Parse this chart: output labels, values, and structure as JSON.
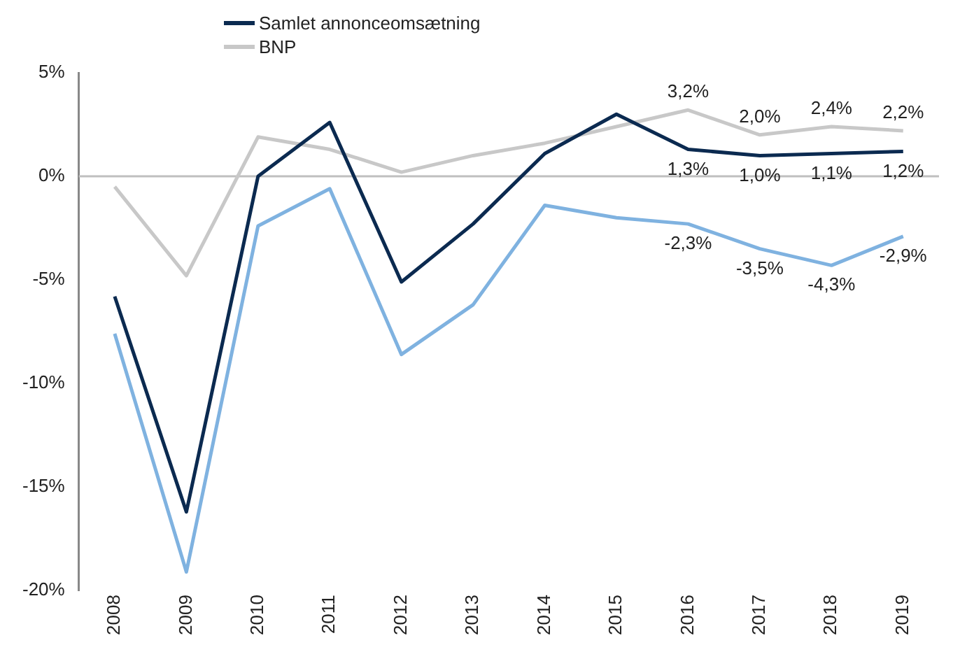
{
  "chart_data": {
    "type": "line",
    "categories": [
      "2008",
      "2009",
      "2010",
      "2011",
      "2012",
      "2013",
      "2014",
      "2015",
      "2016",
      "2017",
      "2018",
      "2019"
    ],
    "series": [
      {
        "name": "Samlet annonceomsætning",
        "color": "#0b2a50",
        "values": [
          -5.8,
          -16.2,
          0,
          2.6,
          -5.1,
          -2.3,
          1.1,
          3.0,
          1.3,
          1.0,
          1.1,
          1.2
        ],
        "value_labels": [
          null,
          null,
          null,
          null,
          null,
          null,
          null,
          null,
          "1,3%",
          "1,0%",
          "1,1%",
          "1,2%"
        ]
      },
      {
        "color": "#7fb2e0",
        "values": [
          -7.6,
          -19.1,
          -2.4,
          -0.6,
          -8.6,
          -6.2,
          -1.4,
          -2.0,
          -2.3,
          -3.5,
          -4.3,
          -2.9
        ],
        "value_labels": [
          null,
          null,
          null,
          null,
          null,
          null,
          null,
          null,
          "-2,3%",
          "-3,5%",
          "-4,3%",
          "-2,9%"
        ]
      },
      {
        "name": "BNP",
        "color": "#c8c8c8",
        "values": [
          -0.5,
          -4.8,
          1.9,
          1.3,
          0.2,
          1.0,
          1.6,
          2.4,
          3.2,
          2.0,
          2.4,
          2.2
        ],
        "value_labels": [
          null,
          null,
          null,
          null,
          null,
          null,
          null,
          null,
          "3,2%",
          "2,0%",
          "2,4%",
          "2,2%"
        ]
      }
    ],
    "ylim": [
      -20,
      5
    ],
    "yticks": [
      {
        "value": -20,
        "label": "-20%"
      },
      {
        "value": -15,
        "label": "-15%"
      },
      {
        "value": -10,
        "label": "-10%"
      },
      {
        "value": -5,
        "label": "-5%"
      },
      {
        "value": 0,
        "label": "0%"
      },
      {
        "value": 5,
        "label": "5%"
      }
    ],
    "ref_lines": [
      {
        "axis": "y",
        "value": 0,
        "color": "#bfbfbf"
      }
    ],
    "grid": false,
    "legend": "top left",
    "marker": "none",
    "line_style": "solid"
  }
}
